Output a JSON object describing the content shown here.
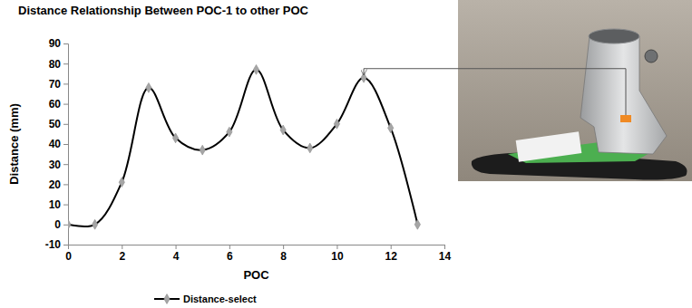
{
  "chart_data": {
    "type": "line",
    "title": "Distance Relationship Between POC-1 to other POC",
    "x_label": "POC",
    "y_label": "Distance (mm)",
    "x": [
      0,
      1,
      2,
      3,
      4,
      5,
      6,
      7,
      8,
      9,
      10,
      11,
      12,
      13
    ],
    "series": [
      {
        "name": "Distance-select",
        "color": "#000000",
        "marker": "diamond",
        "line_style": "smooth",
        "values": [
          0,
          0,
          21,
          68,
          43,
          37,
          46,
          77,
          47,
          38,
          50,
          73,
          48,
          0
        ]
      }
    ],
    "xlim": [
      0,
      14
    ],
    "xticks": [
      0,
      2,
      4,
      6,
      8,
      10,
      12,
      14
    ],
    "ylim": [
      -10,
      90
    ],
    "yticks": [
      -10,
      0,
      10,
      20,
      30,
      40,
      50,
      60,
      70,
      80,
      90
    ],
    "grid": false,
    "legend": "bottom"
  }
}
